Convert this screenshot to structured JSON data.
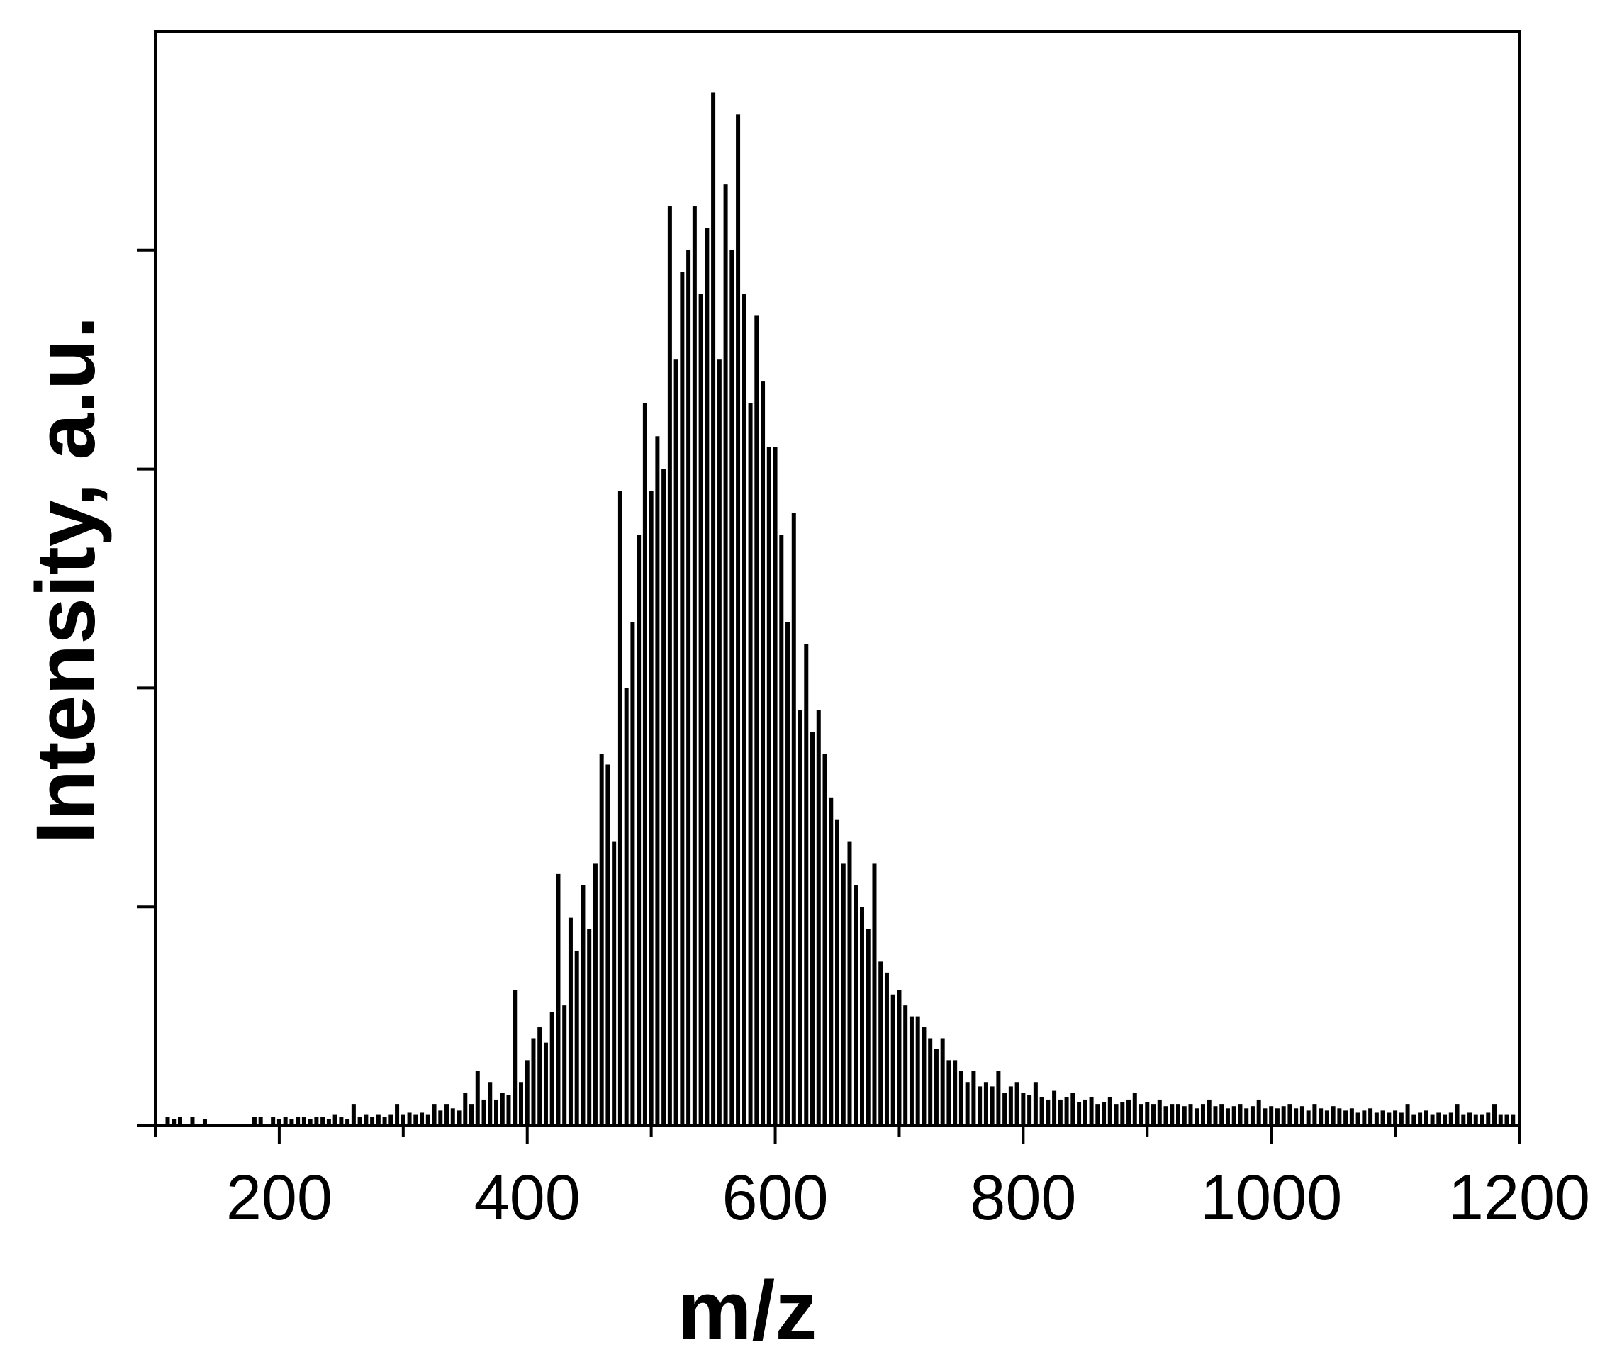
{
  "chart_data": {
    "type": "bar",
    "color": "#000000",
    "x_label": "m/z",
    "y_label": "Intensity, a.u.",
    "xlim": [
      100,
      1200
    ],
    "xticks": [
      200,
      400,
      600,
      800,
      1000,
      1200
    ],
    "xminor_ticks": [
      100,
      300,
      500,
      700,
      900,
      1100
    ],
    "ylim": [
      0,
      5
    ],
    "yticks": [
      0,
      1,
      2,
      3,
      4
    ],
    "x": [
      110,
      115,
      120,
      125,
      130,
      135,
      140,
      145,
      150,
      155,
      160,
      165,
      170,
      175,
      180,
      185,
      190,
      195,
      200,
      205,
      210,
      215,
      220,
      225,
      230,
      235,
      240,
      245,
      250,
      255,
      260,
      265,
      270,
      275,
      280,
      285,
      290,
      295,
      300,
      305,
      310,
      315,
      320,
      325,
      330,
      335,
      340,
      345,
      350,
      355,
      360,
      365,
      370,
      375,
      380,
      385,
      390,
      395,
      400,
      405,
      410,
      415,
      420,
      425,
      430,
      435,
      440,
      445,
      450,
      455,
      460,
      465,
      470,
      475,
      480,
      485,
      490,
      495,
      500,
      505,
      510,
      515,
      520,
      525,
      530,
      535,
      540,
      545,
      550,
      555,
      560,
      565,
      570,
      575,
      580,
      585,
      590,
      595,
      600,
      605,
      610,
      615,
      620,
      625,
      630,
      635,
      640,
      645,
      650,
      655,
      660,
      665,
      670,
      675,
      680,
      685,
      690,
      695,
      700,
      705,
      710,
      715,
      720,
      725,
      730,
      735,
      740,
      745,
      750,
      755,
      760,
      765,
      770,
      775,
      780,
      785,
      790,
      795,
      800,
      805,
      810,
      815,
      820,
      825,
      830,
      835,
      840,
      845,
      850,
      855,
      860,
      865,
      870,
      875,
      880,
      885,
      890,
      895,
      900,
      905,
      910,
      915,
      920,
      925,
      930,
      935,
      940,
      945,
      950,
      955,
      960,
      965,
      970,
      975,
      980,
      985,
      990,
      995,
      1000,
      1005,
      1010,
      1015,
      1020,
      1025,
      1030,
      1035,
      1040,
      1045,
      1050,
      1055,
      1060,
      1065,
      1070,
      1075,
      1080,
      1085,
      1090,
      1095,
      1100,
      1105,
      1110,
      1115,
      1120,
      1125,
      1130,
      1135,
      1140,
      1145,
      1150,
      1155,
      1160,
      1165,
      1170,
      1175,
      1180,
      1185,
      1190,
      1195
    ],
    "values": [
      0.04,
      0.03,
      0.04,
      0,
      0.04,
      0,
      0.03,
      0,
      0,
      0,
      0,
      0,
      0,
      0,
      0.04,
      0.04,
      0,
      0.04,
      0.03,
      0.04,
      0.03,
      0.04,
      0.04,
      0.03,
      0.04,
      0.04,
      0.03,
      0.05,
      0.04,
      0.03,
      0.1,
      0.04,
      0.05,
      0.04,
      0.05,
      0.04,
      0.05,
      0.1,
      0.05,
      0.06,
      0.05,
      0.06,
      0.05,
      0.1,
      0.07,
      0.1,
      0.08,
      0.07,
      0.15,
      0.1,
      0.25,
      0.12,
      0.2,
      0.12,
      0.15,
      0.14,
      0.62,
      0.2,
      0.3,
      0.4,
      0.45,
      0.38,
      0.52,
      1.15,
      0.55,
      0.95,
      0.8,
      1.1,
      0.9,
      1.2,
      1.7,
      1.65,
      1.3,
      2.9,
      2.0,
      2.3,
      2.7,
      3.3,
      2.9,
      3.15,
      3.0,
      4.2,
      3.5,
      3.9,
      4.0,
      4.2,
      3.8,
      4.1,
      4.72,
      3.5,
      4.3,
      4.0,
      4.62,
      3.8,
      3.3,
      3.7,
      3.4,
      3.1,
      3.1,
      2.7,
      2.3,
      2.8,
      1.9,
      2.2,
      1.8,
      1.9,
      1.7,
      1.5,
      1.4,
      1.2,
      1.3,
      1.1,
      1.0,
      0.9,
      1.2,
      0.75,
      0.7,
      0.6,
      0.62,
      0.55,
      0.5,
      0.5,
      0.45,
      0.4,
      0.35,
      0.4,
      0.3,
      0.3,
      0.25,
      0.2,
      0.25,
      0.18,
      0.2,
      0.18,
      0.25,
      0.15,
      0.18,
      0.2,
      0.15,
      0.14,
      0.2,
      0.13,
      0.12,
      0.16,
      0.12,
      0.13,
      0.15,
      0.11,
      0.12,
      0.13,
      0.1,
      0.11,
      0.13,
      0.1,
      0.11,
      0.12,
      0.15,
      0.1,
      0.11,
      0.1,
      0.12,
      0.09,
      0.1,
      0.1,
      0.09,
      0.1,
      0.08,
      0.1,
      0.12,
      0.09,
      0.1,
      0.08,
      0.09,
      0.1,
      0.08,
      0.09,
      0.12,
      0.08,
      0.09,
      0.08,
      0.09,
      0.1,
      0.08,
      0.09,
      0.07,
      0.1,
      0.08,
      0.07,
      0.09,
      0.08,
      0.07,
      0.08,
      0.06,
      0.07,
      0.08,
      0.06,
      0.07,
      0.06,
      0.07,
      0.06,
      0.1,
      0.05,
      0.06,
      0.07,
      0.05,
      0.06,
      0.05,
      0.06,
      0.1,
      0.05,
      0.06,
      0.05,
      0.05,
      0.06,
      0.1,
      0.05,
      0.05,
      0.05
    ]
  }
}
